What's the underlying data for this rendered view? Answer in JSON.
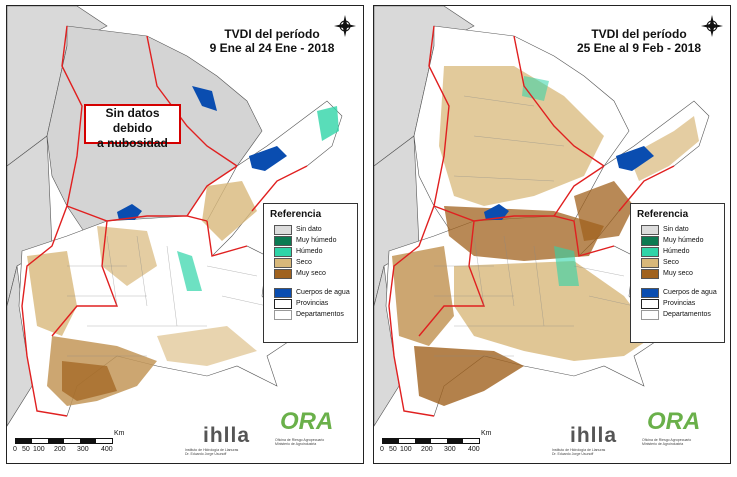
{
  "maps": [
    {
      "title_line1": "TVDI del período",
      "title_line2": "9 Ene al 24 Ene - 2018",
      "note": {
        "line1": "Sin datos debido",
        "line2": "a nubosidad"
      }
    },
    {
      "title_line1": "TVDI del período",
      "title_line2": "25 Ene al 9 Feb - 2018"
    }
  ],
  "legend": {
    "title": "Referencia",
    "classes": [
      {
        "label": "Sin dato",
        "color": "#dcdcdc"
      },
      {
        "label": "Muy húmedo",
        "color": "#0b7a52"
      },
      {
        "label": "Húmedo",
        "color": "#2fd4a8"
      },
      {
        "label": "Seco",
        "color": "#d8b87a"
      },
      {
        "label": "Muy seco",
        "color": "#a0621e"
      }
    ],
    "layers": [
      {
        "label": "Cuerpos de agua",
        "color": "#0a4db0"
      },
      {
        "label": "Provincias",
        "color": "#ffffff"
      },
      {
        "label": "Departamentos",
        "color": "#ffffff"
      }
    ]
  },
  "scale": {
    "unit": "Km",
    "ticks": [
      "0",
      "50",
      "100",
      "200",
      "300",
      "400"
    ]
  },
  "logos": {
    "ihlla": "ihlla",
    "ihlla_sub1": "Instituto de Hidrología de Llanuras",
    "ihlla_sub2": "Dr. Eduardo Jorge Usunoff",
    "ora": "ORA",
    "ora_sub1": "Oficina de Riesgo Agropecuario",
    "ora_sub2": "Ministerio de Agroindustria"
  },
  "colors": {
    "province_border": "#e02020",
    "dept_border": "#555555",
    "land_nodata": "#d9d9d9",
    "land": "#ffffff"
  }
}
